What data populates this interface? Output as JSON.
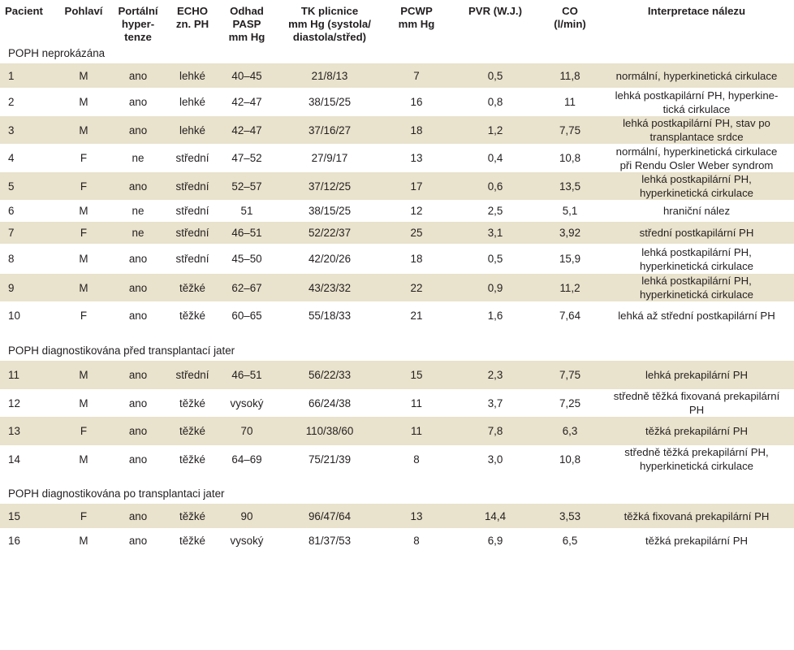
{
  "columns": [
    [
      "Pacient"
    ],
    [
      "Pohlaví"
    ],
    [
      "Portální",
      "hyper-",
      "tenze"
    ],
    [
      "ECHO",
      "zn. PH"
    ],
    [
      "Odhad",
      "PASP",
      "mm Hg"
    ],
    [
      "TK plicnice",
      "mm Hg (systola/",
      "diastola/střed)"
    ],
    [
      "PCWP",
      "mm Hg"
    ],
    [
      "PVR (W.J.)"
    ],
    [
      "CO",
      "(l/min)"
    ],
    [
      "Interpretace nálezu"
    ]
  ],
  "groups": [
    {
      "title": "POPH neprokázána",
      "rows": [
        {
          "id": "1",
          "sex": "M",
          "portal": "ano",
          "echo": "lehké",
          "pasp": "40–45",
          "tk": "21/8/13",
          "pcwp": "7",
          "pvr": "0,5",
          "co": "11,8",
          "interp": [
            "normální, hyperkinetická cirkulace"
          ]
        },
        {
          "id": "2",
          "sex": "M",
          "portal": "ano",
          "echo": "lehké",
          "pasp": "42–47",
          "tk": "38/15/25",
          "pcwp": "16",
          "pvr": "0,8",
          "co": "11",
          "interp": [
            "lehká postkapilární PH, hyperkine-",
            "tická cirkulace"
          ]
        },
        {
          "id": "3",
          "sex": "M",
          "portal": "ano",
          "echo": "lehké",
          "pasp": "42–47",
          "tk": "37/16/27",
          "pcwp": "18",
          "pvr": "1,2",
          "co": "7,75",
          "interp": [
            "lehká postkapilární PH, stav po",
            "transplantace srdce"
          ]
        },
        {
          "id": "4",
          "sex": "F",
          "portal": "ne",
          "echo": "střední",
          "pasp": "47–52",
          "tk": "27/9/17",
          "pcwp": "13",
          "pvr": "0,4",
          "co": "10,8",
          "interp": [
            "normální, hyperkinetická cirkulace",
            "při Rendu Osler Weber syndrom"
          ]
        },
        {
          "id": "5",
          "sex": "F",
          "portal": "ano",
          "echo": "střední",
          "pasp": "52–57",
          "tk": "37/12/25",
          "pcwp": "17",
          "pvr": "0,6",
          "co": "13,5",
          "interp": [
            "lehká postkapilární PH,",
            "hyperkinetická cirkulace"
          ]
        },
        {
          "id": "6",
          "sex": "M",
          "portal": "ne",
          "echo": "střední",
          "pasp": "51",
          "tk": "38/15/25",
          "pcwp": "12",
          "pvr": "2,5",
          "co": "5,1",
          "interp": [
            "hraniční nález"
          ]
        },
        {
          "id": "7",
          "sex": "F",
          "portal": "ne",
          "echo": "střední",
          "pasp": "46–51",
          "tk": "52/22/37",
          "pcwp": "25",
          "pvr": "3,1",
          "co": "3,92",
          "interp": [
            "střední postkapilární PH"
          ]
        },
        {
          "id": "8",
          "sex": "M",
          "portal": "ano",
          "echo": "střední",
          "pasp": "45–50",
          "tk": "42/20/26",
          "pcwp": "18",
          "pvr": "0,5",
          "co": "15,9",
          "interp": [
            "lehká postkapilární PH,",
            "hyperkinetická cirkulace"
          ]
        },
        {
          "id": "9",
          "sex": "M",
          "portal": "ano",
          "echo": "těžké",
          "pasp": "62–67",
          "tk": "43/23/32",
          "pcwp": "22",
          "pvr": "0,9",
          "co": "11,2",
          "interp": [
            "lehká postkapilární PH,",
            "hyperkinetická cirkulace"
          ]
        },
        {
          "id": "10",
          "sex": "F",
          "portal": "ano",
          "echo": "těžké",
          "pasp": "60–65",
          "tk": "55/18/33",
          "pcwp": "21",
          "pvr": "1,6",
          "co": "7,64",
          "interp": [
            "lehká až střední postkapilární PH"
          ]
        }
      ]
    },
    {
      "title": "POPH diagnostikována před transplantací jater",
      "rows": [
        {
          "id": "11",
          "sex": "M",
          "portal": "ano",
          "echo": "střední",
          "pasp": "46–51",
          "tk": "56/22/33",
          "pcwp": "15",
          "pvr": "2,3",
          "co": "7,75",
          "interp": [
            "lehká prekapilární PH"
          ]
        },
        {
          "id": "12",
          "sex": "M",
          "portal": "ano",
          "echo": "těžké",
          "pasp": "vysoký",
          "tk": "66/24/38",
          "pcwp": "11",
          "pvr": "3,7",
          "co": "7,25",
          "interp": [
            "středně těžká fixovaná prekapilární",
            "PH"
          ]
        },
        {
          "id": "13",
          "sex": "F",
          "portal": "ano",
          "echo": "těžké",
          "pasp": "70",
          "tk": "110/38/60",
          "pcwp": "11",
          "pvr": "7,8",
          "co": "6,3",
          "interp": [
            "těžká prekapilární PH"
          ]
        },
        {
          "id": "14",
          "sex": "M",
          "portal": "ano",
          "echo": "těžké",
          "pasp": "64–69",
          "tk": "75/21/39",
          "pcwp": "8",
          "pvr": "3,0",
          "co": "10,8",
          "interp": [
            "středně těžká prekapilární PH,",
            "hyperkinetická cirkulace"
          ]
        }
      ]
    },
    {
      "title": "POPH diagnostikována po transplantaci jater",
      "rows": [
        {
          "id": "15",
          "sex": "F",
          "portal": "ano",
          "echo": "těžké",
          "pasp": "90",
          "tk": "96/47/64",
          "pcwp": "13",
          "pvr": "14,4",
          "co": "3,53",
          "interp": [
            "těžká fixovaná prekapilární PH"
          ]
        },
        {
          "id": "16",
          "sex": "M",
          "portal": "ano",
          "echo": "těžké",
          "pasp": "vysoký",
          "tk": "81/37/53",
          "pcwp": "8",
          "pvr": "6,9",
          "co": "6,5",
          "interp": [
            "těžká prekapilární PH"
          ]
        }
      ]
    }
  ]
}
